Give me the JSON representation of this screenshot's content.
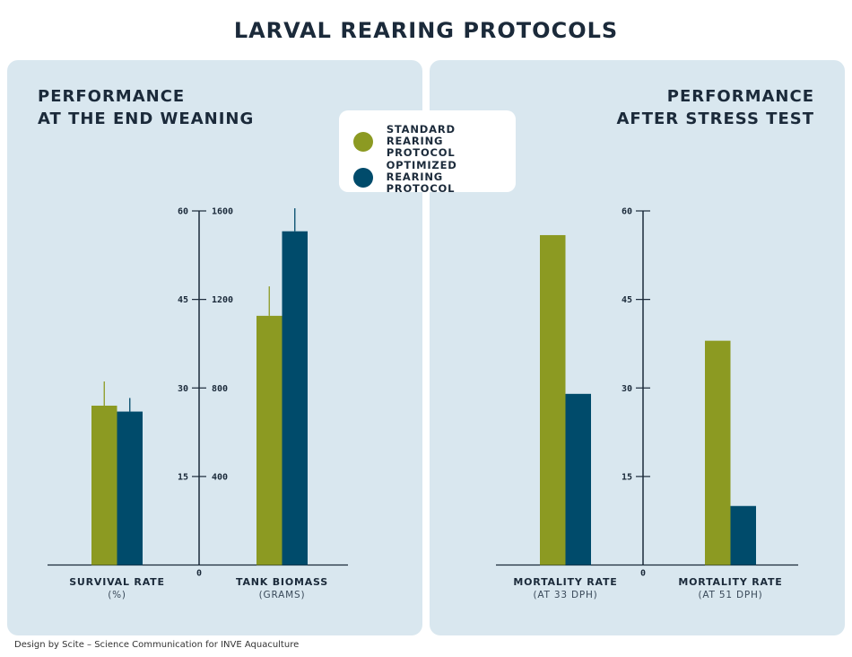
{
  "title": "LARVAL REARING PROTOCOLS",
  "colors": {
    "standard": "#8c9a22",
    "optimized": "#004b6b",
    "panel": "#d9e7ef",
    "text": "#1b2a3a"
  },
  "legend": [
    {
      "label_1": "STANDARD REARING",
      "label_2": "PROTOCOL"
    },
    {
      "label_1": "OPTIMIZED REARING",
      "label_2": "PROTOCOL"
    }
  ],
  "footer": "Design by Scite – Science Communication for INVE Aquaculture",
  "chart_data": [
    {
      "type": "bar",
      "title_1": "PERFORMANCE",
      "title_2": "AT THE END WEANING",
      "y_left": {
        "ticks": [
          "0",
          "15",
          "30",
          "45",
          "60"
        ],
        "lim": [
          0,
          60
        ]
      },
      "y_right": {
        "ticks": [
          "400",
          "800",
          "1200",
          "1600"
        ],
        "lim": [
          0,
          1600
        ]
      },
      "groups": [
        {
          "label": "SURVIVAL RATE",
          "sublabel": "(%)",
          "axis": "left",
          "values": [
            27.0,
            26.0
          ],
          "error_upper": [
            31.1,
            28.3
          ]
        },
        {
          "label": "TANK BIOMASS",
          "sublabel": "(GRAMS)",
          "axis": "right",
          "values": [
            1126,
            1508
          ],
          "error_upper": [
            1259,
            1612
          ]
        }
      ],
      "series": [
        "standard",
        "optimized"
      ]
    },
    {
      "type": "bar",
      "title_1": "PERFORMANCE",
      "title_2": "AFTER STRESS TEST",
      "y_left": {
        "ticks": [
          "0",
          "15",
          "30",
          "45",
          "60"
        ],
        "lim": [
          0,
          60
        ]
      },
      "groups": [
        {
          "label": "MORTALITY RATE",
          "sublabel": "(AT 33 DPH)",
          "axis": "left",
          "values": [
            55.9,
            29.0
          ]
        },
        {
          "label": "MORTALITY RATE",
          "sublabel": "(AT 51 DPH)",
          "axis": "left",
          "values": [
            38.0,
            10.0
          ]
        }
      ],
      "series": [
        "standard",
        "optimized"
      ]
    }
  ]
}
